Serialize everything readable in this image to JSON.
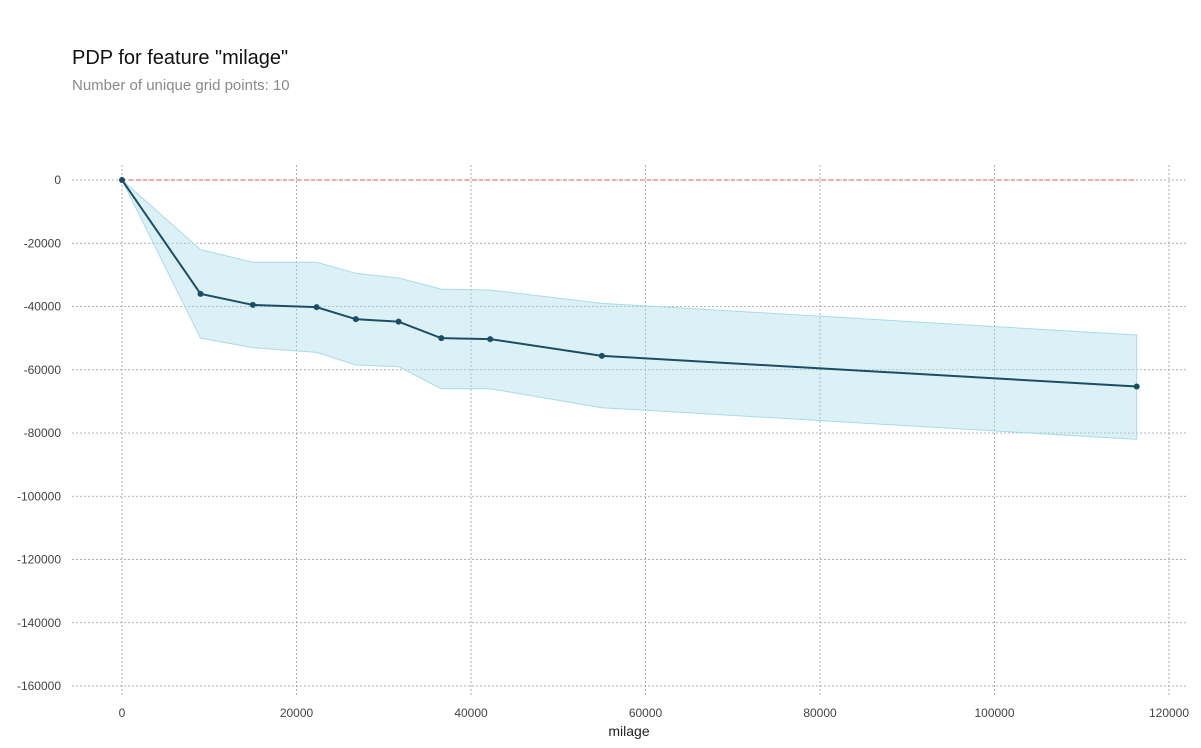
{
  "chart_data": {
    "type": "line",
    "title": "PDP for feature \"milage\"",
    "subtitle": "Number of unique grid points: 10",
    "xlabel": "milage",
    "ylabel": "",
    "xlim": [
      -6000,
      122000
    ],
    "ylim": [
      -163000,
      0
    ],
    "x_ticks": [
      0,
      20000,
      40000,
      60000,
      80000,
      100000,
      120000
    ],
    "y_ticks": [
      0,
      -20000,
      -40000,
      -60000,
      -80000,
      -100000,
      -120000,
      -140000,
      -160000
    ],
    "grid": true,
    "series": [
      {
        "x": [
          0,
          9000,
          15000,
          22300,
          26800,
          31700,
          36600,
          42200,
          55000,
          116300
        ],
        "values": [
          0,
          -36000,
          -39500,
          -40200,
          -44000,
          -44800,
          -50000,
          -50300,
          -55600,
          -65300
        ],
        "color": "#1a4e66"
      }
    ],
    "band": {
      "x": [
        0,
        9000,
        15000,
        22300,
        26800,
        31700,
        36600,
        42200,
        55000,
        116300
      ],
      "upper": [
        0,
        -22000,
        -26000,
        -26000,
        -29500,
        -31000,
        -34500,
        -34800,
        -39000,
        -49000
      ],
      "lower": [
        0,
        -50000,
        -53000,
        -54500,
        -58500,
        -59000,
        -66000,
        -66000,
        -72000,
        -82000
      ],
      "color": "#a8dce8"
    },
    "baseline": {
      "y": 0,
      "color": "#e07b6a"
    }
  }
}
